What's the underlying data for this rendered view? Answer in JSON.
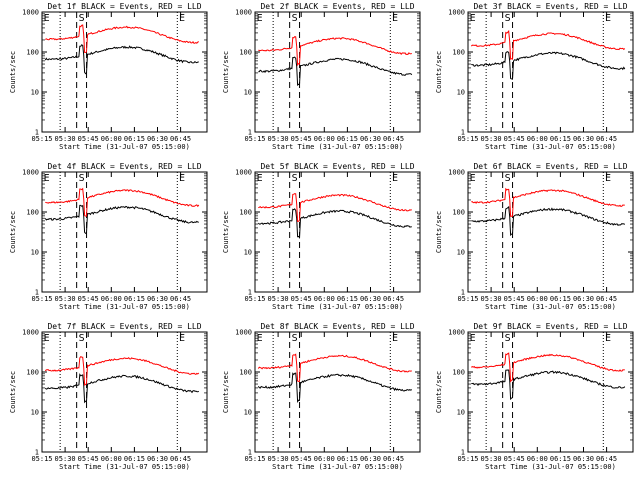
{
  "figure": {
    "background": "#ffffff",
    "events_color": "#000000",
    "lld_color": "#ff0000"
  },
  "chart_data": [
    {
      "type": "line",
      "title": "Det 1f BLACK = Events, RED = LLD",
      "ylabel": "Counts/sec",
      "xlabel": "Start Time (31-Jul-07 05:15:00)",
      "yscale": "log",
      "ylim": [
        1,
        1000
      ],
      "xticks": [
        "05:15",
        "05:30",
        "05:45",
        "06:00",
        "06:15",
        "06:30",
        "06:45"
      ],
      "yticks": [
        "1",
        "10",
        "100",
        "1000"
      ],
      "markers": {
        "E_left": "E",
        "S": "S",
        "E_right": "E"
      },
      "series": [
        {
          "name": "BLACK = Events",
          "color": "#000000",
          "level": 1.0
        },
        {
          "name": "RED = LLD",
          "color": "#ff0000",
          "level": 1.0
        }
      ]
    },
    {
      "type": "line",
      "title": "Det 2f BLACK = Events, RED = LLD",
      "ylabel": "Counts/sec",
      "xlabel": "Start Time (31-Jul-07 05:15:00)",
      "yscale": "log",
      "ylim": [
        1,
        1000
      ],
      "xticks": [
        "05:15",
        "05:30",
        "05:45",
        "06:00",
        "06:15",
        "06:30",
        "06:45"
      ],
      "yticks": [
        "1",
        "10",
        "100",
        "1000"
      ],
      "markers": {
        "E_left": "E",
        "S": "S",
        "E_right": "E"
      },
      "series": [
        {
          "name": "BLACK = Events",
          "color": "#000000",
          "level": 0.4
        },
        {
          "name": "RED = LLD",
          "color": "#ff0000",
          "level": 0.3
        }
      ]
    },
    {
      "type": "line",
      "title": "Det 3f BLACK = Events, RED = LLD",
      "ylabel": "Counts/sec",
      "xlabel": "Start Time (31-Jul-07 05:15:00)",
      "yscale": "log",
      "ylim": [
        1,
        1000
      ],
      "xticks": [
        "05:15",
        "05:30",
        "05:45",
        "06:00",
        "06:15",
        "06:30",
        "06:45"
      ],
      "yticks": [
        "1",
        "10",
        "100",
        "1000"
      ],
      "markers": {
        "E_left": "E",
        "S": "S",
        "E_right": "E"
      },
      "series": [
        {
          "name": "BLACK = Events",
          "color": "#000000",
          "level": 0.7
        },
        {
          "name": "RED = LLD",
          "color": "#ff0000",
          "level": 0.6
        }
      ]
    },
    {
      "type": "line",
      "title": "Det 4f BLACK = Events, RED = LLD",
      "ylabel": "Counts/sec",
      "xlabel": "Start Time (31-Jul-07 05:15:00)",
      "yscale": "log",
      "ylim": [
        1,
        1000
      ],
      "xticks": [
        "05:15",
        "05:30",
        "05:45",
        "06:00",
        "06:15",
        "06:30",
        "06:45"
      ],
      "yticks": [
        "1",
        "10",
        "100",
        "1000"
      ],
      "markers": {
        "E_left": "E",
        "S": "S",
        "E_right": "E"
      },
      "series": [
        {
          "name": "BLACK = Events",
          "color": "#000000",
          "level": 1.0
        },
        {
          "name": "RED = LLD",
          "color": "#ff0000",
          "level": 0.8
        }
      ]
    },
    {
      "type": "line",
      "title": "Det 5f BLACK = Events, RED = LLD",
      "ylabel": "Counts/sec",
      "xlabel": "Start Time (31-Jul-07 05:15:00)",
      "yscale": "log",
      "ylim": [
        1,
        1000
      ],
      "xticks": [
        "05:15",
        "05:30",
        "05:45",
        "06:00",
        "06:15",
        "06:30",
        "06:45"
      ],
      "yticks": [
        "1",
        "10",
        "100",
        "1000"
      ],
      "markers": {
        "E_left": "E",
        "S": "S",
        "E_right": "E"
      },
      "series": [
        {
          "name": "BLACK = Events",
          "color": "#000000",
          "level": 0.8
        },
        {
          "name": "RED = LLD",
          "color": "#ff0000",
          "level": 0.5
        }
      ]
    },
    {
      "type": "line",
      "title": "Det 6f BLACK = Events, RED = LLD",
      "ylabel": "Counts/sec",
      "xlabel": "Start Time (31-Jul-07 05:15:00)",
      "yscale": "log",
      "ylim": [
        1,
        1000
      ],
      "xticks": [
        "05:15",
        "05:30",
        "05:45",
        "06:00",
        "06:15",
        "06:30",
        "06:45"
      ],
      "yticks": [
        "1",
        "10",
        "100",
        "1000"
      ],
      "markers": {
        "E_left": "E",
        "S": "S",
        "E_right": "E"
      },
      "series": [
        {
          "name": "BLACK = Events",
          "color": "#000000",
          "level": 0.9
        },
        {
          "name": "RED = LLD",
          "color": "#ff0000",
          "level": 0.8
        }
      ]
    },
    {
      "type": "line",
      "title": "Det 7f BLACK = Events, RED = LLD",
      "ylabel": "Counts/sec",
      "xlabel": "Start Time (31-Jul-07 05:15:00)",
      "yscale": "log",
      "ylim": [
        1,
        1000
      ],
      "xticks": [
        "05:15",
        "05:30",
        "05:45",
        "06:00",
        "06:15",
        "06:30",
        "06:45"
      ],
      "yticks": [
        "1",
        "10",
        "100",
        "1000"
      ],
      "markers": {
        "E_left": "E",
        "S": "S",
        "E_right": "E"
      },
      "series": [
        {
          "name": "BLACK = Events",
          "color": "#000000",
          "level": 0.55
        },
        {
          "name": "RED = LLD",
          "color": "#ff0000",
          "level": 0.3
        }
      ]
    },
    {
      "type": "line",
      "title": "Det 8f BLACK = Events, RED = LLD",
      "ylabel": "Counts/sec",
      "xlabel": "Start Time (31-Jul-07 05:15:00)",
      "yscale": "log",
      "ylim": [
        1,
        1000
      ],
      "xticks": [
        "05:15",
        "05:30",
        "05:45",
        "06:00",
        "06:15",
        "06:30",
        "06:45"
      ],
      "yticks": [
        "1",
        "10",
        "100",
        "1000"
      ],
      "markers": {
        "E_left": "E",
        "S": "S",
        "E_right": "E"
      },
      "series": [
        {
          "name": "BLACK = Events",
          "color": "#000000",
          "level": 0.6
        },
        {
          "name": "RED = LLD",
          "color": "#ff0000",
          "level": 0.45
        }
      ]
    },
    {
      "type": "line",
      "title": "Det 9f BLACK = Events, RED = LLD",
      "ylabel": "Counts/sec",
      "xlabel": "Start Time (31-Jul-07 05:15:00)",
      "yscale": "log",
      "ylim": [
        1,
        1000
      ],
      "xticks": [
        "05:15",
        "05:30",
        "05:45",
        "06:00",
        "06:15",
        "06:30",
        "06:45"
      ],
      "yticks": [
        "1",
        "10",
        "100",
        "1000"
      ],
      "markers": {
        "E_left": "E",
        "S": "S",
        "E_right": "E"
      },
      "series": [
        {
          "name": "BLACK = Events",
          "color": "#000000",
          "level": 0.75
        },
        {
          "name": "RED = LLD",
          "color": "#ff0000",
          "level": 0.5
        }
      ]
    }
  ]
}
